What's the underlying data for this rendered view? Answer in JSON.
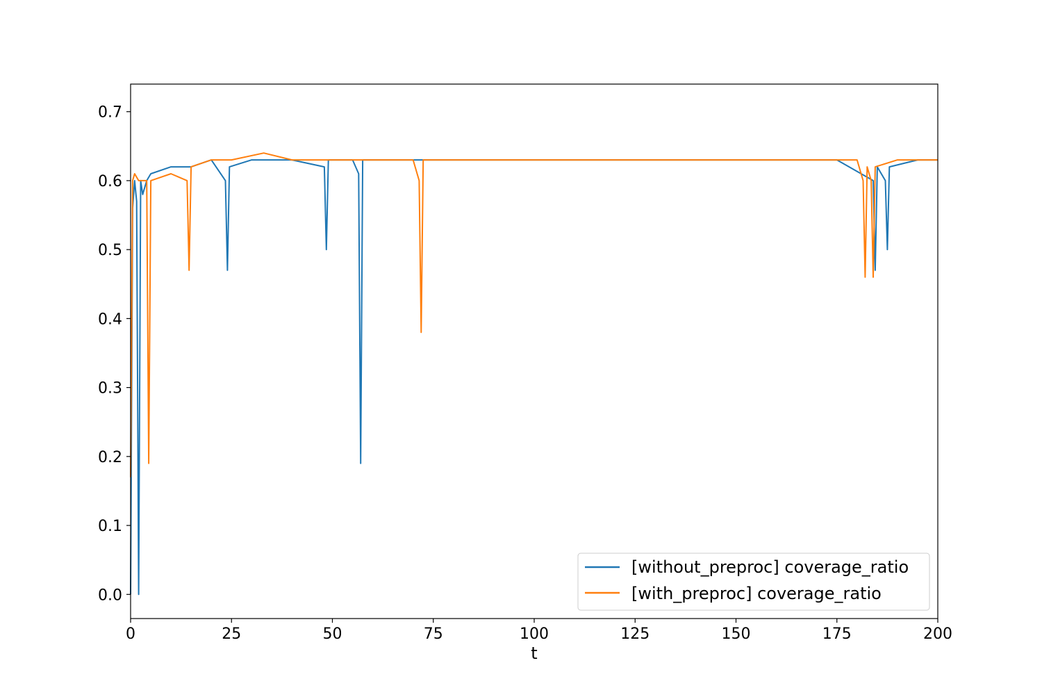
{
  "chart_data": {
    "type": "line",
    "title": "",
    "xlabel": "t",
    "ylabel": "",
    "xlim": [
      0,
      200
    ],
    "ylim": [
      -0.035,
      0.74
    ],
    "x_ticks": [
      0,
      25,
      50,
      75,
      100,
      125,
      150,
      175,
      200
    ],
    "x_tick_labels": [
      "0",
      "25",
      "50",
      "75",
      "100",
      "125",
      "150",
      "175",
      "200"
    ],
    "y_ticks": [
      0.0,
      0.1,
      0.2,
      0.3,
      0.4,
      0.5,
      0.6,
      0.7
    ],
    "y_tick_labels": [
      "0.0",
      "0.1",
      "0.2",
      "0.3",
      "0.4",
      "0.5",
      "0.6",
      "0.7"
    ],
    "grid": false,
    "legend_position": "lower right",
    "series": [
      {
        "name": "[without_preproc] coverage_ratio",
        "color": "#1f77b4",
        "x": [
          0,
          0.5,
          1,
          1.5,
          2,
          2.5,
          3,
          4,
          5,
          10,
          15,
          20,
          23.5,
          24,
          24.5,
          30,
          40,
          48,
          48.5,
          49,
          55,
          56.5,
          57,
          57.5,
          60,
          75,
          100,
          125,
          150,
          175,
          184,
          184.5,
          185,
          187,
          187.5,
          188,
          195,
          200
        ],
        "values": [
          0.0,
          0.56,
          0.6,
          0.57,
          0.0,
          0.6,
          0.58,
          0.6,
          0.61,
          0.62,
          0.62,
          0.63,
          0.6,
          0.47,
          0.62,
          0.63,
          0.63,
          0.62,
          0.5,
          0.63,
          0.63,
          0.61,
          0.19,
          0.63,
          0.63,
          0.63,
          0.63,
          0.63,
          0.63,
          0.63,
          0.6,
          0.47,
          0.62,
          0.6,
          0.5,
          0.62,
          0.63,
          0.63
        ]
      },
      {
        "name": "[with_preproc] coverage_ratio",
        "color": "#ff7f0e",
        "x": [
          0,
          0.5,
          1,
          2,
          3,
          4,
          4.5,
          5,
          10,
          14,
          14.5,
          15,
          20,
          25,
          33,
          40,
          50,
          60,
          70,
          71.5,
          72,
          72.5,
          80,
          90,
          100,
          110,
          120,
          130,
          140,
          150,
          160,
          170,
          180,
          181.5,
          182,
          182.5,
          183.5,
          184,
          184.5,
          190,
          200
        ],
        "values": [
          0.17,
          0.6,
          0.61,
          0.6,
          0.6,
          0.6,
          0.19,
          0.6,
          0.61,
          0.6,
          0.47,
          0.62,
          0.63,
          0.63,
          0.64,
          0.63,
          0.63,
          0.63,
          0.63,
          0.6,
          0.38,
          0.63,
          0.63,
          0.63,
          0.63,
          0.63,
          0.63,
          0.63,
          0.63,
          0.63,
          0.63,
          0.63,
          0.63,
          0.6,
          0.46,
          0.62,
          0.6,
          0.46,
          0.62,
          0.63,
          0.63
        ]
      }
    ]
  }
}
